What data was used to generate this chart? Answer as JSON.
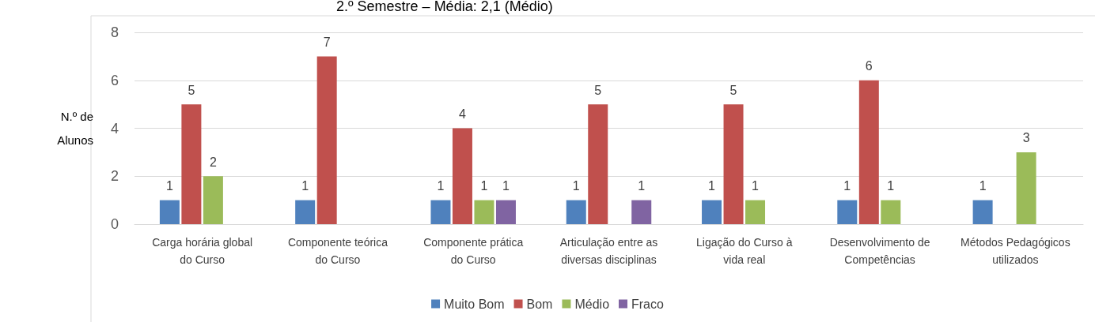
{
  "chart_data": {
    "type": "bar",
    "title": "2.º Semestre – Média: 2,1 (Médio)",
    "ylabel": "N.º de\nAlunos",
    "categories": [
      "Carga horária global\ndo Curso",
      "Componente teórica\ndo Curso",
      "Componente prática\ndo Curso",
      "Articulação entre as\ndiversas disciplinas",
      "Ligação do Curso à\nvida real",
      "Desenvolvimento de\nCompetências",
      "Métodos Pedagógicos\nutilizados"
    ],
    "series": [
      {
        "name": "Muito Bom",
        "color": "#4f81bd",
        "values": [
          1,
          1,
          1,
          1,
          1,
          1,
          1
        ]
      },
      {
        "name": "Bom",
        "color": "#c0504d",
        "values": [
          5,
          7,
          4,
          5,
          5,
          6,
          null
        ]
      },
      {
        "name": "Médio",
        "color": "#9bbb59",
        "values": [
          2,
          null,
          1,
          null,
          1,
          1,
          3
        ]
      },
      {
        "name": "Fraco",
        "color": "#8064a2",
        "values": [
          null,
          null,
          1,
          1,
          null,
          null,
          null
        ]
      }
    ],
    "ylim": [
      0,
      8
    ],
    "yticks": [
      0,
      2,
      4,
      6,
      8
    ],
    "grid": "y",
    "legend": "bottom",
    "data_labels": true
  }
}
